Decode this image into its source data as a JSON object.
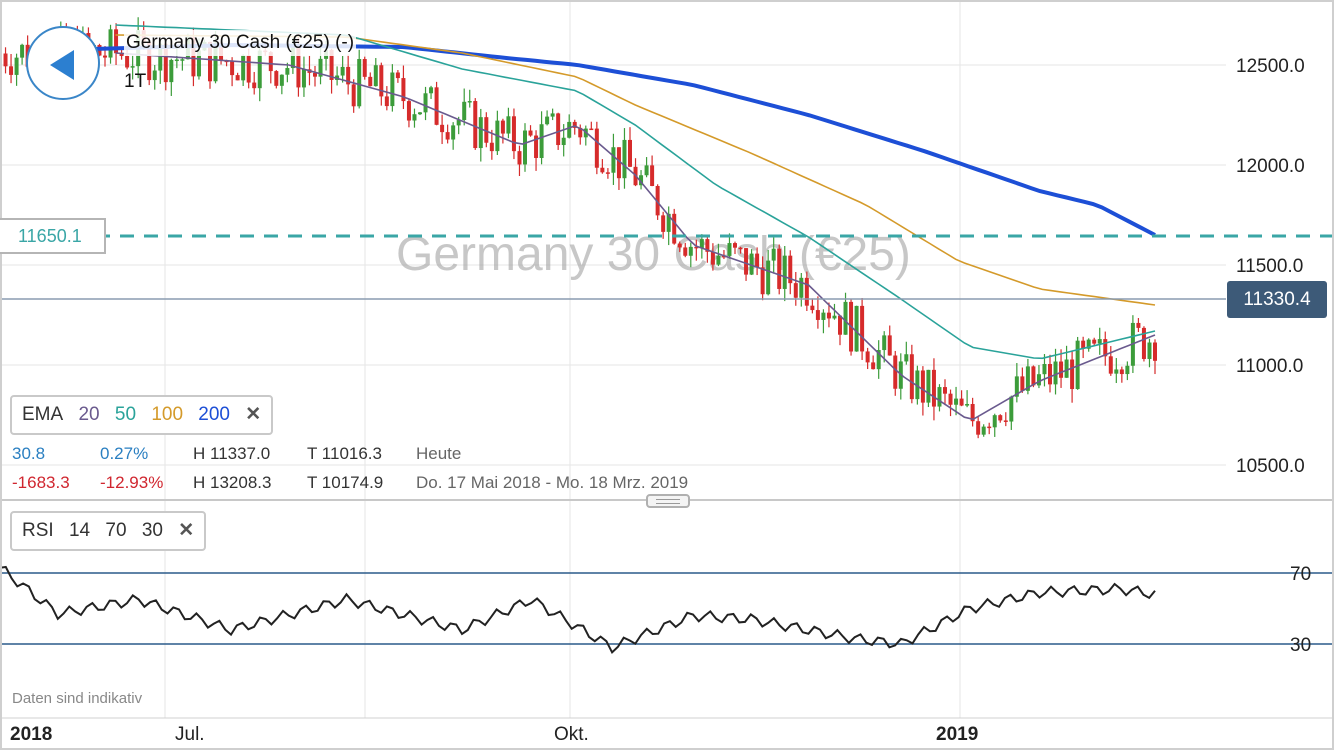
{
  "header": {
    "title": "Germany 30 Cash (€25) (-)",
    "timeframe": "1T",
    "watermark": "Germany 30 Cash (€25)"
  },
  "price_line": {
    "value": "11330.4",
    "color": "#3d5a78"
  },
  "level_line": {
    "value": "11650.1",
    "color": "#3aa6a6"
  },
  "ema_panel": {
    "name": "EMA",
    "periods": [
      {
        "label": "20",
        "color": "#6a5a8e"
      },
      {
        "label": "50",
        "color": "#2aa39a"
      },
      {
        "label": "100",
        "color": "#d49a2a"
      },
      {
        "label": "200",
        "color": "#1d4fd6"
      }
    ],
    "close": "✕"
  },
  "stats": {
    "today": {
      "change": "30.8",
      "pct": "0.27%",
      "high": "H 11337.0",
      "low": "T 11016.3",
      "label": "Heute"
    },
    "range": {
      "change": "-1683.3",
      "pct": "-12.93%",
      "high": "H 13208.3",
      "low": "T 10174.9",
      "label": "Do. 17 Mai 2018 - Mo. 18 Mrz. 2019"
    },
    "positive_color": "#2a7fc1",
    "negative_color": "#d0262f"
  },
  "rsi_panel": {
    "name": "RSI",
    "params": [
      "14",
      "70",
      "30"
    ],
    "close": "✕",
    "levels": [
      "70",
      "30"
    ]
  },
  "x_axis": {
    "labels": [
      {
        "text": "2018",
        "bold": true
      },
      {
        "text": "Jul.",
        "bold": false
      },
      {
        "text": "Okt.",
        "bold": false
      },
      {
        "text": "2019",
        "bold": true
      }
    ]
  },
  "disclaimer": "Daten sind indikativ",
  "icons": {
    "back": "back-arrow-icon",
    "resize": "drag-handle-icon"
  },
  "colors": {
    "up": "#3c9c3a",
    "down": "#d62b2b",
    "rsi_line": "#222222",
    "rsi_oversold": "#3c9c3a",
    "rsi_overbought": "#d62b2b",
    "grid": "#e6e6e6"
  },
  "chart_data": {
    "type": "candlestick",
    "y_axis": {
      "ticks": [
        10500,
        11000,
        11500,
        12000,
        12500
      ],
      "labels": [
        "10500.0",
        "11000.0",
        "11500.0",
        "12000.0",
        "12500.0"
      ]
    },
    "ema200": [
      [
        0.08,
        12580
      ],
      [
        0.2,
        12600
      ],
      [
        0.35,
        12590
      ],
      [
        0.43,
        12540
      ],
      [
        0.5,
        12500
      ],
      [
        0.6,
        12400
      ],
      [
        0.7,
        12250
      ],
      [
        0.8,
        12070
      ],
      [
        0.9,
        11870
      ],
      [
        0.95,
        11800
      ],
      [
        1.0,
        11650
      ]
    ],
    "ema100": [
      [
        0.1,
        12650
      ],
      [
        0.3,
        12640
      ],
      [
        0.4,
        12560
      ],
      [
        0.5,
        12440
      ],
      [
        0.55,
        12300
      ],
      [
        0.65,
        12060
      ],
      [
        0.75,
        11800
      ],
      [
        0.83,
        11520
      ],
      [
        0.9,
        11380
      ],
      [
        1.0,
        11300
      ]
    ],
    "ema50": [
      [
        0.1,
        12700
      ],
      [
        0.3,
        12650
      ],
      [
        0.4,
        12480
      ],
      [
        0.5,
        12370
      ],
      [
        0.55,
        12200
      ],
      [
        0.62,
        11900
      ],
      [
        0.7,
        11640
      ],
      [
        0.78,
        11330
      ],
      [
        0.84,
        11090
      ],
      [
        0.9,
        11030
      ],
      [
        1.0,
        11170
      ]
    ],
    "ema20": [
      [
        0.1,
        12560
      ],
      [
        0.25,
        12500
      ],
      [
        0.35,
        12340
      ],
      [
        0.45,
        12100
      ],
      [
        0.5,
        12200
      ],
      [
        0.55,
        11950
      ],
      [
        0.6,
        11600
      ],
      [
        0.7,
        11400
      ],
      [
        0.78,
        10950
      ],
      [
        0.84,
        10720
      ],
      [
        0.9,
        10920
      ],
      [
        1.0,
        11150
      ]
    ],
    "rsi": [
      [
        0.0,
        73
      ],
      [
        0.05,
        47
      ],
      [
        0.12,
        55
      ],
      [
        0.2,
        38
      ],
      [
        0.3,
        55
      ],
      [
        0.4,
        38
      ],
      [
        0.46,
        55
      ],
      [
        0.53,
        28
      ],
      [
        0.6,
        46
      ],
      [
        0.65,
        44
      ],
      [
        0.74,
        33
      ],
      [
        0.78,
        30
      ],
      [
        0.84,
        50
      ],
      [
        0.9,
        59
      ],
      [
        0.97,
        61
      ],
      [
        1.0,
        58
      ]
    ]
  }
}
